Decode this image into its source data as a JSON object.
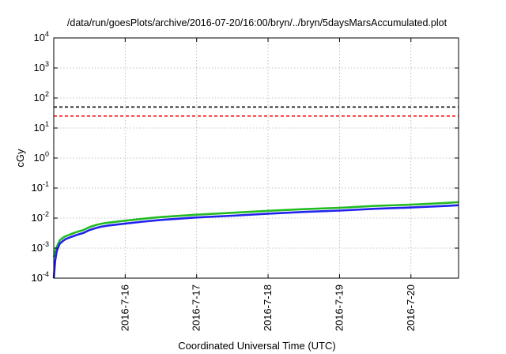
{
  "chart_data": {
    "type": "line",
    "title": "/data/run/goesPlots/archive/2016-07-20/16:00/bryn/../bryn/5daysMarsAccumulated.plot",
    "xlabel": "Coordinated Universal Time (UTC)",
    "ylabel": "cGy",
    "yscale": "log",
    "ylim": [
      0.0001,
      10000
    ],
    "xlim": [
      "2016-07-15 00:00",
      "2016-07-20 16:00"
    ],
    "grid": true,
    "y_ticks": [
      {
        "base": "10",
        "exp": "-4"
      },
      {
        "base": "10",
        "exp": "-3"
      },
      {
        "base": "10",
        "exp": "-2"
      },
      {
        "base": "10",
        "exp": "-1"
      },
      {
        "base": "10",
        "exp": "0"
      },
      {
        "base": "10",
        "exp": "1"
      },
      {
        "base": "10",
        "exp": "2"
      },
      {
        "base": "10",
        "exp": "3"
      },
      {
        "base": "10",
        "exp": "4"
      }
    ],
    "x_ticks": [
      "2016-7-16",
      "2016-7-17",
      "2016-7-18",
      "2016-7-19",
      "2016-7-20"
    ],
    "reference_lines": [
      {
        "value": 50,
        "color": "#000000",
        "style": "dashed"
      },
      {
        "value": 25,
        "color": "#ff0000",
        "style": "dashed"
      }
    ],
    "series": [
      {
        "color": "#22bb22",
        "x": [
          "2016-07-15 00:00",
          "2016-07-15 00:30",
          "2016-07-15 01:00",
          "2016-07-15 02:00",
          "2016-07-15 03:00",
          "2016-07-15 04:00",
          "2016-07-15 06:00",
          "2016-07-15 08:00",
          "2016-07-15 10:00",
          "2016-07-15 12:00",
          "2016-07-15 14:00",
          "2016-07-15 16:00",
          "2016-07-15 18:00",
          "2016-07-16 00:00",
          "2016-07-16 06:00",
          "2016-07-16 12:00",
          "2016-07-17 00:00",
          "2016-07-17 12:00",
          "2016-07-18 00:00",
          "2016-07-18 12:00",
          "2016-07-19 00:00",
          "2016-07-19 12:00",
          "2016-07-20 00:00",
          "2016-07-20 12:00",
          "2016-07-20 16:00"
        ],
        "values": [
          0.0005,
          0.0008,
          0.0011,
          0.0018,
          0.0022,
          0.0025,
          0.003,
          0.0035,
          0.004,
          0.005,
          0.0058,
          0.0065,
          0.007,
          0.0082,
          0.0095,
          0.0108,
          0.013,
          0.015,
          0.0175,
          0.0198,
          0.022,
          0.0255,
          0.028,
          0.032,
          0.034
        ]
      },
      {
        "color": "#2222ee",
        "x": [
          "2016-07-15 00:00",
          "2016-07-15 00:30",
          "2016-07-15 01:00",
          "2016-07-15 02:00",
          "2016-07-15 03:00",
          "2016-07-15 04:00",
          "2016-07-15 06:00",
          "2016-07-15 08:00",
          "2016-07-15 10:00",
          "2016-07-15 12:00",
          "2016-07-15 14:00",
          "2016-07-15 16:00",
          "2016-07-15 18:00",
          "2016-07-16 00:00",
          "2016-07-16 06:00",
          "2016-07-16 12:00",
          "2016-07-17 00:00",
          "2016-07-17 12:00",
          "2016-07-18 00:00",
          "2016-07-18 12:00",
          "2016-07-19 00:00",
          "2016-07-19 12:00",
          "2016-07-20 00:00",
          "2016-07-20 12:00",
          "2016-07-20 16:00"
        ],
        "values": [
          0.0001,
          0.0004,
          0.0008,
          0.0014,
          0.0017,
          0.002,
          0.0024,
          0.0028,
          0.0032,
          0.004,
          0.0046,
          0.0052,
          0.0056,
          0.0066,
          0.0076,
          0.0087,
          0.0105,
          0.012,
          0.014,
          0.016,
          0.0178,
          0.0205,
          0.0225,
          0.0255,
          0.0268
        ]
      }
    ]
  }
}
